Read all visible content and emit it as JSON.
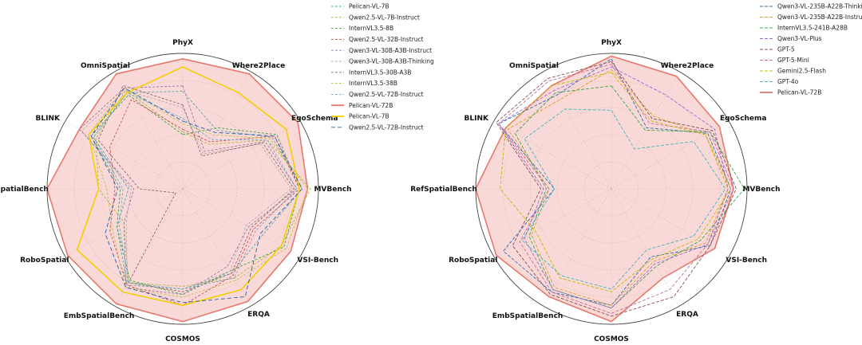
{
  "chart_data": [
    {
      "type": "radar",
      "title": "",
      "axes": [
        "PhyX",
        "Where2Place",
        "EgoSchema",
        "MVBench",
        "VSI-Bench",
        "ERQA",
        "COSMOS",
        "EmbSpatialBench",
        "RoboSpatial",
        "RefSpatialBench",
        "BLINK",
        "OmniSpatial"
      ],
      "rmax": 1.0,
      "grid_levels": [
        0.2,
        0.4,
        0.6,
        0.8,
        1.0
      ],
      "legend_position": "right",
      "series": [
        {
          "name": "Pelican-VL-7B",
          "color": "#5aa6a6",
          "dash": "3,2",
          "filled": false,
          "values": [
            0.72,
            0.5,
            0.76,
            0.88,
            0.68,
            0.72,
            0.74,
            0.82,
            0.56,
            0.4,
            0.76,
            0.82
          ]
        },
        {
          "name": "Qwen2.5-VL-7B-Instruct",
          "color": "#b8b040",
          "dash": "3,2",
          "filled": false,
          "values": [
            0.42,
            0.38,
            0.72,
            0.94,
            0.84,
            0.76,
            0.72,
            0.8,
            0.5,
            0.62,
            0.74,
            0.84
          ]
        },
        {
          "name": "InternVL3.5-8B",
          "color": "#3aa84a",
          "dash": "3,2",
          "filled": false,
          "values": [
            0.4,
            0.52,
            0.8,
            0.86,
            0.86,
            0.7,
            0.78,
            0.78,
            0.56,
            0.46,
            0.78,
            0.8
          ]
        },
        {
          "name": "Qwen2.5-VL-32B-Instruct",
          "color": "#d05050",
          "dash": "3,2",
          "filled": false,
          "values": [
            0.44,
            0.4,
            0.78,
            0.86,
            0.6,
            0.74,
            0.86,
            0.82,
            0.62,
            0.5,
            0.62,
            0.76
          ]
        },
        {
          "name": "Qwen3-VL-30B-A3B-Instruct",
          "color": "#9a7aaa",
          "dash": "3,2",
          "filled": false,
          "values": [
            0.76,
            0.32,
            0.7,
            0.84,
            0.56,
            0.66,
            0.78,
            0.84,
            0.5,
            0.36,
            0.88,
            0.86
          ]
        },
        {
          "name": "Qwen3-VL-30B-A3B-Thinking",
          "color": "#b0b0b0",
          "dash": "3,2",
          "filled": false,
          "values": [
            0.6,
            0.3,
            0.66,
            0.8,
            0.54,
            0.7,
            0.74,
            0.82,
            0.48,
            0.38,
            0.86,
            0.84
          ]
        },
        {
          "name": "InternVL3.5-30B-A3B",
          "color": "#8a6a6a",
          "dash": "3,2",
          "filled": false,
          "values": [
            0.62,
            0.28,
            0.68,
            0.82,
            0.58,
            0.72,
            0.76,
            0.8,
            0.06,
            0.32,
            0.72,
            0.88
          ]
        },
        {
          "name": "InternVL3.5-38B",
          "color": "#c0c050",
          "dash": "3,2",
          "filled": false,
          "values": [
            0.48,
            0.46,
            0.74,
            0.92,
            0.88,
            0.78,
            0.8,
            0.84,
            0.6,
            0.56,
            0.8,
            0.86
          ]
        },
        {
          "name": "Qwen2.5-VL-72B-Instruct",
          "color": "#6ab0d0",
          "dash": "3,2",
          "filled": false,
          "values": [
            0.52,
            0.42,
            0.72,
            0.84,
            0.62,
            0.76,
            0.74,
            0.8,
            0.54,
            0.44,
            0.76,
            0.82
          ]
        },
        {
          "name": "Pelican-VL-72B",
          "color": "#e8786e",
          "dash": "",
          "filled": true,
          "values": [
            0.96,
            0.98,
            0.98,
            0.92,
            0.92,
            0.96,
            0.98,
            0.98,
            0.98,
            1.0,
            0.88,
            0.98
          ]
        },
        {
          "name": "Pelican-VL-7B",
          "color": "#f0d000",
          "dash": "",
          "filled": false,
          "values": [
            0.9,
            0.82,
            0.88,
            0.86,
            0.84,
            0.86,
            0.86,
            0.88,
            0.9,
            0.62,
            0.8,
            0.82
          ]
        },
        {
          "name": "Qwen2.5-VL-72B-Instruct",
          "color": "#2060b0",
          "dash": "5,3",
          "filled": false,
          "values": [
            0.5,
            0.48,
            0.78,
            0.88,
            0.66,
            0.92,
            0.84,
            0.84,
            0.66,
            0.48,
            0.78,
            0.86
          ]
        }
      ]
    },
    {
      "type": "radar",
      "title": "",
      "axes": [
        "PhyX",
        "Where2Place",
        "EgoSchema",
        "MVBench",
        "VSI-Bench",
        "ERQA",
        "COSMOS",
        "EmbSpatialBench",
        "RoboSpatial",
        "RefSpatialBench",
        "BLINK",
        "OmniSpatial"
      ],
      "rmax": 1.0,
      "grid_levels": [
        0.2,
        0.4,
        0.6,
        0.8,
        1.0
      ],
      "legend_position": "right",
      "series": [
        {
          "name": "Qwen3-VL-235B-A22B-Thinking",
          "color": "#2c6fb0",
          "dash": "4,2",
          "filled": false,
          "values": [
            0.96,
            0.52,
            0.82,
            0.88,
            0.84,
            0.58,
            0.86,
            0.88,
            0.92,
            0.42,
            0.96,
            0.8
          ]
        },
        {
          "name": "Qwen3-VL-235B-A22B-Instruct",
          "color": "#e0a030",
          "dash": "4,2",
          "filled": false,
          "values": [
            0.88,
            0.62,
            0.8,
            0.86,
            0.8,
            0.62,
            0.86,
            0.84,
            0.68,
            0.46,
            0.88,
            0.76
          ]
        },
        {
          "name": "InternVL3.5-241B-A28B",
          "color": "#3aa84a",
          "dash": "4,2",
          "filled": false,
          "values": [
            0.76,
            0.5,
            0.84,
            0.98,
            0.76,
            0.66,
            0.88,
            0.86,
            0.7,
            0.48,
            0.82,
            0.82
          ]
        },
        {
          "name": "Qwen3-VL-Plus",
          "color": "#a06ad0",
          "dash": "4,2",
          "filled": false,
          "values": [
            0.9,
            0.8,
            0.88,
            0.86,
            0.82,
            0.64,
            0.88,
            0.86,
            0.74,
            0.5,
            0.96,
            0.84
          ]
        },
        {
          "name": "GPT-5",
          "color": "#8a5050",
          "dash": "4,2",
          "filled": false,
          "values": [
            0.94,
            0.6,
            0.86,
            0.92,
            0.84,
            0.92,
            0.94,
            0.9,
            0.84,
            0.52,
            0.98,
            0.94
          ]
        },
        {
          "name": "GPT-5-Mini",
          "color": "#c070a0",
          "dash": "4,2",
          "filled": false,
          "values": [
            0.92,
            0.56,
            0.84,
            0.9,
            0.82,
            0.86,
            0.92,
            0.88,
            0.78,
            0.46,
            0.96,
            0.92
          ]
        },
        {
          "name": "Gemini2.5-Flash",
          "color": "#c8b800",
          "dash": "4,2",
          "filled": false,
          "values": [
            0.86,
            0.58,
            0.8,
            0.88,
            0.74,
            0.6,
            0.76,
            0.76,
            0.64,
            0.82,
            0.9,
            0.88
          ]
        },
        {
          "name": "GPT-4o",
          "color": "#40b8c0",
          "dash": "4,2",
          "filled": false,
          "values": [
            0.58,
            0.34,
            0.7,
            0.84,
            0.7,
            0.52,
            0.74,
            0.74,
            0.76,
            0.42,
            0.74,
            0.68
          ]
        },
        {
          "name": "Pelican-VL-72B",
          "color": "#e8786e",
          "dash": "",
          "filled": true,
          "values": [
            0.98,
            0.96,
            0.92,
            0.9,
            0.88,
            0.76,
            0.98,
            0.92,
            0.98,
            1.0,
            0.9,
            0.88
          ]
        }
      ]
    }
  ]
}
